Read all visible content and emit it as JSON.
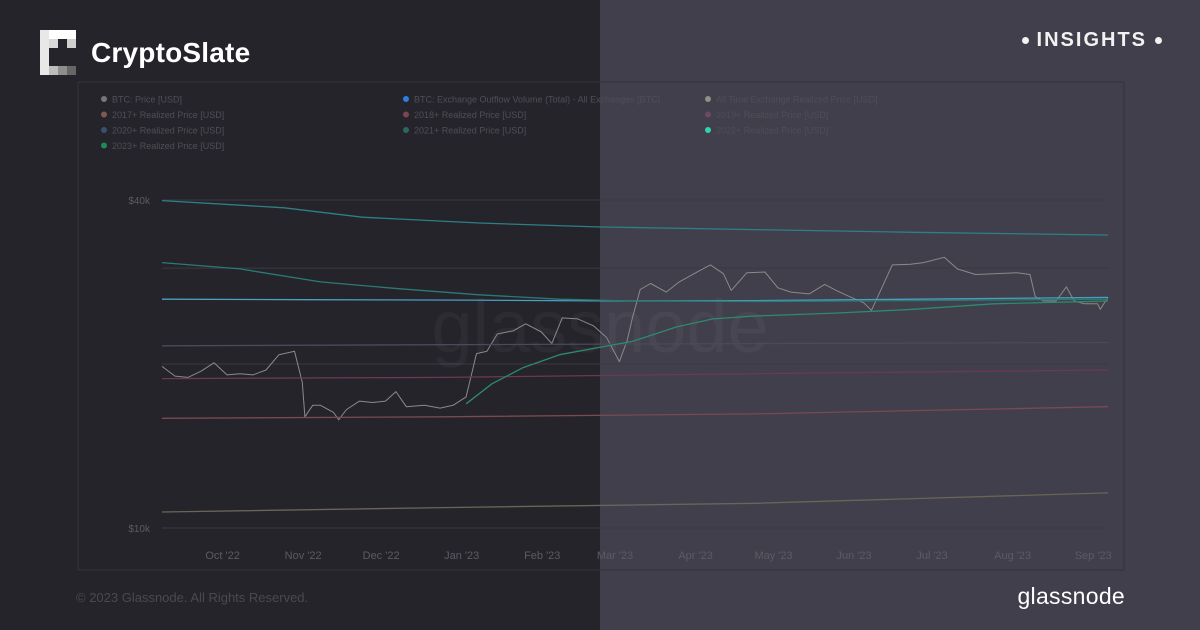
{
  "brand": {
    "name": "CryptoSlate",
    "logo_icon": "cryptoslate-logo-icon"
  },
  "badge": {
    "label": "INSIGHTS"
  },
  "footer": {
    "copyright": "© 2023 Glassnode. All Rights Reserved.",
    "logo_text": "glassnode"
  },
  "watermark": "glassnode",
  "colors": {
    "left_panel": "#25242a",
    "right_panel": "#403f4b"
  },
  "chart_data": {
    "type": "line",
    "y_scale": "log",
    "ylim": [
      10000,
      40000
    ],
    "y_ticks": [
      {
        "value": 40000,
        "label": "$40k"
      },
      {
        "value": 10000,
        "label": "$10k"
      }
    ],
    "x_range": [
      "2022-09-15",
      "2023-09-14"
    ],
    "x_ticks": [
      {
        "x": "2022-10-01",
        "label": "Oct '22"
      },
      {
        "x": "2022-11-01",
        "label": "Nov '22"
      },
      {
        "x": "2022-12-01",
        "label": "Dec '22"
      },
      {
        "x": "2023-01-01",
        "label": "Jan '23"
      },
      {
        "x": "2023-02-01",
        "label": "Feb '23"
      },
      {
        "x": "2023-03-01",
        "label": "Mar '23"
      },
      {
        "x": "2023-04-01",
        "label": "Apr '23"
      },
      {
        "x": "2023-05-01",
        "label": "May '23"
      },
      {
        "x": "2023-06-01",
        "label": "Jun '23"
      },
      {
        "x": "2023-07-01",
        "label": "Jul '23"
      },
      {
        "x": "2023-08-01",
        "label": "Aug '23"
      },
      {
        "x": "2023-09-01",
        "label": "Sep '23"
      }
    ],
    "legend_placement": "top",
    "legend": [
      {
        "name": "BTC: Price [USD]",
        "color": "#777777"
      },
      {
        "name": "BTC: Exchange Outflow Volume (Total) - All Exchanges [BTC]",
        "color": "#2f7de0"
      },
      {
        "name": "All Time Exchange Realized Price [USD]",
        "color": "#8f8f84"
      },
      {
        "name": "2017+ Realized Price [USD]",
        "color": "#7e5a4e"
      },
      {
        "name": "2018+ Realized Price [USD]",
        "color": "#7d4452"
      },
      {
        "name": "2019+ Realized Price [USD]",
        "color": "#6b4a68"
      },
      {
        "name": "2020+ Realized Price [USD]",
        "color": "#3a4e70"
      },
      {
        "name": "2021+ Realized Price [USD]",
        "color": "#2d6660"
      },
      {
        "name": "2022+ Realized Price [USD]",
        "color": "#2dd4b0"
      },
      {
        "name": "2023+ Realized Price [USD]",
        "color": "#1c8a5a"
      }
    ],
    "series": [
      {
        "name": "BTC: Price [USD]",
        "color": "#8a8a8a",
        "points": [
          [
            "2022-09-15",
            19800
          ],
          [
            "2022-09-20",
            19000
          ],
          [
            "2022-09-25",
            18900
          ],
          [
            "2022-09-30",
            19400
          ],
          [
            "2022-10-05",
            20100
          ],
          [
            "2022-10-10",
            19100
          ],
          [
            "2022-10-15",
            19200
          ],
          [
            "2022-10-20",
            19100
          ],
          [
            "2022-10-25",
            19500
          ],
          [
            "2022-10-30",
            20800
          ],
          [
            "2022-11-05",
            21100
          ],
          [
            "2022-11-08",
            18500
          ],
          [
            "2022-11-09",
            16000
          ],
          [
            "2022-11-12",
            16800
          ],
          [
            "2022-11-15",
            16800
          ],
          [
            "2022-11-20",
            16300
          ],
          [
            "2022-11-22",
            15800
          ],
          [
            "2022-11-25",
            16500
          ],
          [
            "2022-11-30",
            17100
          ],
          [
            "2022-12-05",
            17000
          ],
          [
            "2022-12-10",
            17100
          ],
          [
            "2022-12-14",
            17800
          ],
          [
            "2022-12-18",
            16700
          ],
          [
            "2022-12-25",
            16800
          ],
          [
            "2022-12-31",
            16600
          ],
          [
            "2023-01-05",
            16800
          ],
          [
            "2023-01-10",
            17400
          ],
          [
            "2023-01-14",
            20900
          ],
          [
            "2023-01-18",
            21100
          ],
          [
            "2023-01-22",
            22700
          ],
          [
            "2023-01-28",
            23000
          ],
          [
            "2023-02-02",
            23700
          ],
          [
            "2023-02-08",
            22900
          ],
          [
            "2023-02-12",
            21800
          ],
          [
            "2023-02-16",
            24300
          ],
          [
            "2023-02-22",
            24200
          ],
          [
            "2023-02-28",
            23500
          ],
          [
            "2023-03-05",
            22400
          ],
          [
            "2023-03-10",
            20200
          ],
          [
            "2023-03-13",
            22100
          ],
          [
            "2023-03-15",
            24300
          ],
          [
            "2023-03-18",
            27400
          ],
          [
            "2023-03-22",
            28100
          ],
          [
            "2023-03-28",
            27100
          ],
          [
            "2023-04-02",
            28300
          ],
          [
            "2023-04-10",
            29700
          ],
          [
            "2023-04-14",
            30400
          ],
          [
            "2023-04-19",
            29300
          ],
          [
            "2023-04-22",
            27300
          ],
          [
            "2023-04-28",
            29400
          ],
          [
            "2023-05-05",
            29500
          ],
          [
            "2023-05-10",
            27600
          ],
          [
            "2023-05-15",
            27100
          ],
          [
            "2023-05-22",
            26900
          ],
          [
            "2023-05-28",
            28000
          ],
          [
            "2023-06-02",
            27200
          ],
          [
            "2023-06-08",
            26400
          ],
          [
            "2023-06-12",
            25900
          ],
          [
            "2023-06-15",
            25100
          ],
          [
            "2023-06-20",
            28300
          ],
          [
            "2023-06-23",
            30400
          ],
          [
            "2023-06-30",
            30500
          ],
          [
            "2023-07-05",
            30700
          ],
          [
            "2023-07-13",
            31400
          ],
          [
            "2023-07-18",
            29900
          ],
          [
            "2023-07-25",
            29200
          ],
          [
            "2023-08-01",
            29300
          ],
          [
            "2023-08-10",
            29400
          ],
          [
            "2023-08-15",
            29200
          ],
          [
            "2023-08-17",
            26600
          ],
          [
            "2023-08-20",
            26100
          ],
          [
            "2023-08-25",
            26100
          ],
          [
            "2023-08-29",
            27700
          ],
          [
            "2023-09-01",
            26100
          ],
          [
            "2023-09-05",
            25800
          ],
          [
            "2023-09-10",
            25800
          ],
          [
            "2023-09-11",
            25200
          ],
          [
            "2023-09-14",
            26500
          ]
        ]
      },
      {
        "name": "All Time Exchange Realized Price [USD]",
        "color": "#4a9fc2",
        "points": [
          [
            "2022-09-15",
            26300
          ],
          [
            "2022-11-10",
            26250
          ],
          [
            "2023-01-10",
            26200
          ],
          [
            "2023-03-10",
            26100
          ],
          [
            "2023-05-01",
            26150
          ],
          [
            "2023-07-01",
            26300
          ],
          [
            "2023-09-14",
            26500
          ]
        ]
      },
      {
        "name": "2017+ Realized Price [USD]",
        "color": "#6b6457",
        "points": [
          [
            "2022-09-15",
            10700
          ],
          [
            "2023-01-01",
            10900
          ],
          [
            "2023-05-01",
            11100
          ],
          [
            "2023-09-14",
            11600
          ]
        ]
      },
      {
        "name": "2018+ Realized Price [USD]",
        "color": "#7a4a4f",
        "points": [
          [
            "2022-09-15",
            15900
          ],
          [
            "2023-01-01",
            16000
          ],
          [
            "2023-05-01",
            16200
          ],
          [
            "2023-09-14",
            16700
          ]
        ]
      },
      {
        "name": "2019+ Realized Price [USD]",
        "color": "#6b3a52",
        "points": [
          [
            "2022-09-15",
            18800
          ],
          [
            "2023-01-01",
            18900
          ],
          [
            "2023-05-01",
            19200
          ],
          [
            "2023-09-14",
            19500
          ]
        ]
      },
      {
        "name": "2020+ Realized Price [USD]",
        "color": "#4a4a5c",
        "points": [
          [
            "2022-09-15",
            21600
          ],
          [
            "2023-01-01",
            21700
          ],
          [
            "2023-05-01",
            21800
          ],
          [
            "2023-09-14",
            21900
          ]
        ]
      },
      {
        "name": "2021+ Realized Price [USD]",
        "color": "#2e7f86",
        "points": [
          [
            "2022-09-15",
            39900
          ],
          [
            "2022-11-01",
            38700
          ],
          [
            "2022-12-01",
            37200
          ],
          [
            "2023-01-15",
            36300
          ],
          [
            "2023-03-01",
            35700
          ],
          [
            "2023-05-01",
            35300
          ],
          [
            "2023-07-01",
            34900
          ],
          [
            "2023-09-14",
            34500
          ]
        ]
      },
      {
        "name": "2022+ Realized Price [USD]",
        "color": "#2c7a74",
        "points": [
          [
            "2022-09-15",
            30700
          ],
          [
            "2022-10-15",
            29900
          ],
          [
            "2022-11-15",
            28300
          ],
          [
            "2022-12-15",
            27500
          ],
          [
            "2023-01-15",
            26800
          ],
          [
            "2023-02-15",
            26300
          ],
          [
            "2023-03-15",
            26100
          ],
          [
            "2023-05-01",
            26050
          ],
          [
            "2023-07-01",
            26150
          ],
          [
            "2023-09-14",
            26300
          ]
        ]
      },
      {
        "name": "2023+ Realized Price [USD]",
        "color": "#2d8a6e",
        "points": [
          [
            "2023-01-10",
            16900
          ],
          [
            "2023-01-20",
            18400
          ],
          [
            "2023-02-01",
            19700
          ],
          [
            "2023-02-15",
            20800
          ],
          [
            "2023-03-01",
            21400
          ],
          [
            "2023-03-15",
            22000
          ],
          [
            "2023-04-01",
            23400
          ],
          [
            "2023-04-15",
            24200
          ],
          [
            "2023-05-01",
            24500
          ],
          [
            "2023-06-01",
            24800
          ],
          [
            "2023-07-01",
            25200
          ],
          [
            "2023-08-01",
            25800
          ],
          [
            "2023-09-01",
            26000
          ],
          [
            "2023-09-14",
            26100
          ]
        ]
      }
    ]
  }
}
